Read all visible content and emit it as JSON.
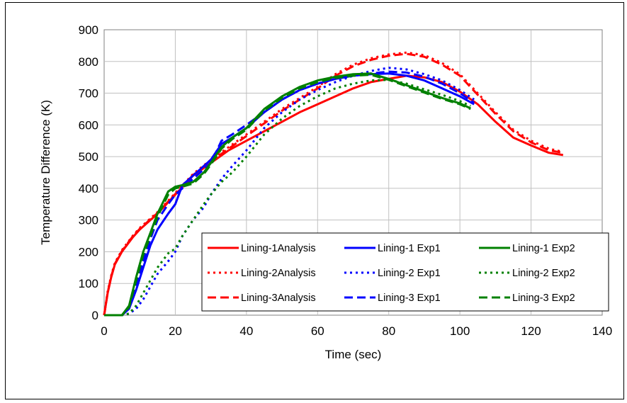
{
  "chart_data": {
    "type": "line",
    "title": "",
    "xlabel": "Time (sec)",
    "ylabel": "Temperature Difference (K)",
    "xlim": [
      0,
      140
    ],
    "ylim": [
      0,
      900
    ],
    "xticks": [
      0,
      20,
      40,
      60,
      80,
      100,
      120,
      140
    ],
    "yticks": [
      0,
      100,
      200,
      300,
      400,
      500,
      600,
      700,
      800,
      900
    ],
    "grid": true,
    "legend_position": "bottom-right",
    "series": [
      {
        "name": "Lining-1Analysis",
        "color": "#ff0000",
        "dash": "solid",
        "points": [
          [
            0,
            0
          ],
          [
            1,
            70
          ],
          [
            2,
            120
          ],
          [
            3,
            160
          ],
          [
            5,
            200
          ],
          [
            8,
            245
          ],
          [
            10,
            270
          ],
          [
            15,
            320
          ],
          [
            20,
            380
          ],
          [
            25,
            440
          ],
          [
            30,
            480
          ],
          [
            35,
            520
          ],
          [
            40,
            550
          ],
          [
            45,
            580
          ],
          [
            50,
            610
          ],
          [
            55,
            640
          ],
          [
            60,
            665
          ],
          [
            65,
            690
          ],
          [
            70,
            715
          ],
          [
            75,
            735
          ],
          [
            80,
            745
          ],
          [
            85,
            755
          ],
          [
            90,
            750
          ],
          [
            95,
            735
          ],
          [
            100,
            705
          ],
          [
            105,
            665
          ],
          [
            110,
            610
          ],
          [
            115,
            560
          ],
          [
            120,
            535
          ],
          [
            125,
            512
          ],
          [
            129,
            505
          ]
        ]
      },
      {
        "name": "Lining-2Analysis",
        "color": "#ff0000",
        "dash": "dot",
        "points": [
          [
            0,
            0
          ],
          [
            1,
            75
          ],
          [
            2,
            125
          ],
          [
            3,
            165
          ],
          [
            5,
            205
          ],
          [
            8,
            250
          ],
          [
            10,
            275
          ],
          [
            15,
            325
          ],
          [
            20,
            385
          ],
          [
            25,
            445
          ],
          [
            30,
            490
          ],
          [
            35,
            530
          ],
          [
            40,
            570
          ],
          [
            45,
            610
          ],
          [
            50,
            650
          ],
          [
            55,
            685
          ],
          [
            60,
            720
          ],
          [
            65,
            760
          ],
          [
            70,
            790
          ],
          [
            75,
            810
          ],
          [
            80,
            822
          ],
          [
            85,
            828
          ],
          [
            90,
            820
          ],
          [
            95,
            795
          ],
          [
            100,
            760
          ],
          [
            105,
            700
          ],
          [
            110,
            640
          ],
          [
            115,
            585
          ],
          [
            120,
            550
          ],
          [
            125,
            525
          ],
          [
            129,
            515
          ]
        ]
      },
      {
        "name": "Lining-3Analysis",
        "color": "#ff0000",
        "dash": "dash",
        "points": [
          [
            0,
            0
          ],
          [
            1,
            72
          ],
          [
            2,
            122
          ],
          [
            3,
            162
          ],
          [
            5,
            202
          ],
          [
            8,
            248
          ],
          [
            10,
            272
          ],
          [
            15,
            322
          ],
          [
            20,
            382
          ],
          [
            25,
            442
          ],
          [
            30,
            485
          ],
          [
            35,
            525
          ],
          [
            40,
            565
          ],
          [
            45,
            605
          ],
          [
            50,
            645
          ],
          [
            55,
            680
          ],
          [
            60,
            715
          ],
          [
            65,
            755
          ],
          [
            70,
            785
          ],
          [
            75,
            805
          ],
          [
            80,
            818
          ],
          [
            85,
            824
          ],
          [
            90,
            815
          ],
          [
            95,
            790
          ],
          [
            100,
            755
          ],
          [
            105,
            695
          ],
          [
            110,
            635
          ],
          [
            115,
            580
          ],
          [
            120,
            545
          ],
          [
            125,
            520
          ],
          [
            129,
            512
          ]
        ]
      },
      {
        "name": "Lining-1 Exp1",
        "color": "#0000ff",
        "dash": "solid",
        "points": [
          [
            0,
            0
          ],
          [
            5,
            0
          ],
          [
            7,
            20
          ],
          [
            9,
            80
          ],
          [
            11,
            150
          ],
          [
            13,
            220
          ],
          [
            15,
            270
          ],
          [
            18,
            320
          ],
          [
            20,
            350
          ],
          [
            22,
            410
          ],
          [
            25,
            440
          ],
          [
            28,
            470
          ],
          [
            30,
            490
          ],
          [
            33,
            540
          ],
          [
            36,
            560
          ],
          [
            40,
            590
          ],
          [
            45,
            640
          ],
          [
            50,
            680
          ],
          [
            55,
            710
          ],
          [
            60,
            730
          ],
          [
            65,
            745
          ],
          [
            70,
            755
          ],
          [
            75,
            760
          ],
          [
            80,
            762
          ],
          [
            85,
            755
          ],
          [
            90,
            740
          ],
          [
            95,
            715
          ],
          [
            100,
            690
          ],
          [
            104,
            665
          ]
        ]
      },
      {
        "name": "Lining-2 Exp1",
        "color": "#0000ff",
        "dash": "dot",
        "points": [
          [
            0,
            0
          ],
          [
            5,
            0
          ],
          [
            7,
            5
          ],
          [
            9,
            20
          ],
          [
            11,
            50
          ],
          [
            13,
            90
          ],
          [
            15,
            130
          ],
          [
            18,
            170
          ],
          [
            20,
            200
          ],
          [
            22,
            250
          ],
          [
            25,
            300
          ],
          [
            28,
            340
          ],
          [
            30,
            380
          ],
          [
            33,
            430
          ],
          [
            36,
            470
          ],
          [
            40,
            520
          ],
          [
            45,
            590
          ],
          [
            50,
            640
          ],
          [
            55,
            680
          ],
          [
            60,
            710
          ],
          [
            65,
            735
          ],
          [
            70,
            755
          ],
          [
            75,
            770
          ],
          [
            80,
            780
          ],
          [
            85,
            775
          ],
          [
            90,
            760
          ],
          [
            95,
            740
          ],
          [
            100,
            710
          ],
          [
            104,
            680
          ]
        ]
      },
      {
        "name": "Lining-3 Exp1",
        "color": "#0000ff",
        "dash": "dash",
        "points": [
          [
            0,
            0
          ],
          [
            5,
            0
          ],
          [
            7,
            25
          ],
          [
            9,
            100
          ],
          [
            11,
            170
          ],
          [
            13,
            240
          ],
          [
            15,
            300
          ],
          [
            18,
            350
          ],
          [
            20,
            380
          ],
          [
            22,
            400
          ],
          [
            25,
            430
          ],
          [
            28,
            460
          ],
          [
            30,
            480
          ],
          [
            33,
            550
          ],
          [
            36,
            570
          ],
          [
            40,
            600
          ],
          [
            45,
            640
          ],
          [
            50,
            680
          ],
          [
            55,
            710
          ],
          [
            60,
            730
          ],
          [
            65,
            745
          ],
          [
            70,
            755
          ],
          [
            75,
            762
          ],
          [
            80,
            768
          ],
          [
            85,
            765
          ],
          [
            90,
            752
          ],
          [
            95,
            730
          ],
          [
            100,
            700
          ],
          [
            104,
            670
          ]
        ]
      },
      {
        "name": "Lining-1 Exp2",
        "color": "#008000",
        "dash": "solid",
        "points": [
          [
            0,
            0
          ],
          [
            5,
            0
          ],
          [
            7,
            30
          ],
          [
            9,
            120
          ],
          [
            11,
            200
          ],
          [
            13,
            260
          ],
          [
            15,
            320
          ],
          [
            18,
            390
          ],
          [
            20,
            405
          ],
          [
            22,
            410
          ],
          [
            25,
            420
          ],
          [
            28,
            450
          ],
          [
            30,
            480
          ],
          [
            33,
            530
          ],
          [
            36,
            560
          ],
          [
            40,
            590
          ],
          [
            45,
            650
          ],
          [
            50,
            690
          ],
          [
            55,
            720
          ],
          [
            60,
            740
          ],
          [
            65,
            752
          ],
          [
            70,
            760
          ],
          [
            75,
            762
          ],
          [
            80,
            745
          ],
          [
            85,
            725
          ],
          [
            90,
            705
          ],
          [
            95,
            685
          ],
          [
            100,
            668
          ],
          [
            103,
            652
          ]
        ]
      },
      {
        "name": "Lining-2 Exp2",
        "color": "#008000",
        "dash": "dot",
        "points": [
          [
            0,
            0
          ],
          [
            5,
            0
          ],
          [
            7,
            5
          ],
          [
            9,
            30
          ],
          [
            11,
            70
          ],
          [
            13,
            110
          ],
          [
            15,
            150
          ],
          [
            18,
            195
          ],
          [
            20,
            210
          ],
          [
            22,
            250
          ],
          [
            25,
            300
          ],
          [
            28,
            350
          ],
          [
            30,
            380
          ],
          [
            33,
            420
          ],
          [
            36,
            450
          ],
          [
            40,
            500
          ],
          [
            45,
            570
          ],
          [
            50,
            620
          ],
          [
            55,
            660
          ],
          [
            60,
            690
          ],
          [
            65,
            715
          ],
          [
            70,
            730
          ],
          [
            75,
            740
          ],
          [
            80,
            742
          ],
          [
            85,
            730
          ],
          [
            90,
            712
          ],
          [
            95,
            695
          ],
          [
            100,
            675
          ],
          [
            103,
            660
          ]
        ]
      },
      {
        "name": "Lining-3 Exp2",
        "color": "#008000",
        "dash": "dash",
        "points": [
          [
            0,
            0
          ],
          [
            5,
            0
          ],
          [
            7,
            25
          ],
          [
            9,
            110
          ],
          [
            11,
            190
          ],
          [
            13,
            250
          ],
          [
            15,
            310
          ],
          [
            18,
            380
          ],
          [
            20,
            400
          ],
          [
            22,
            405
          ],
          [
            25,
            415
          ],
          [
            28,
            445
          ],
          [
            30,
            475
          ],
          [
            33,
            525
          ],
          [
            36,
            555
          ],
          [
            40,
            585
          ],
          [
            45,
            645
          ],
          [
            50,
            685
          ],
          [
            55,
            715
          ],
          [
            60,
            735
          ],
          [
            65,
            748
          ],
          [
            70,
            755
          ],
          [
            75,
            758
          ],
          [
            80,
            742
          ],
          [
            85,
            722
          ],
          [
            90,
            702
          ],
          [
            95,
            682
          ],
          [
            100,
            665
          ],
          [
            103,
            650
          ]
        ]
      }
    ]
  }
}
